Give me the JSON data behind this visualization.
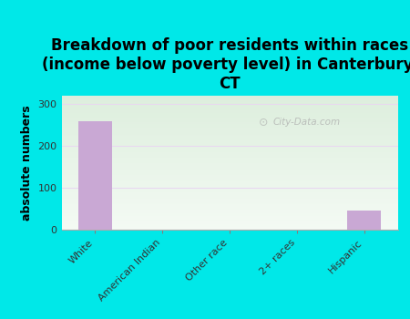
{
  "categories": [
    "White",
    "American Indian",
    "Other race",
    "2+ races",
    "Hispanic"
  ],
  "values": [
    258,
    0,
    0,
    0,
    45
  ],
  "bar_color": "#c9a8d4",
  "title": "Breakdown of poor residents within races\n(income below poverty level) in Canterbury,\nCT",
  "ylabel": "absolute numbers",
  "ylim": [
    0,
    320
  ],
  "yticks": [
    0,
    100,
    200,
    300
  ],
  "background_color": "#00e8e8",
  "plot_bg_top": "#ddeedd",
  "plot_bg_bottom": "#f0f8f0",
  "grid_color": "#e8d8f0",
  "title_fontsize": 12,
  "axis_label_fontsize": 9,
  "tick_fontsize": 8,
  "watermark": "City-Data.com"
}
